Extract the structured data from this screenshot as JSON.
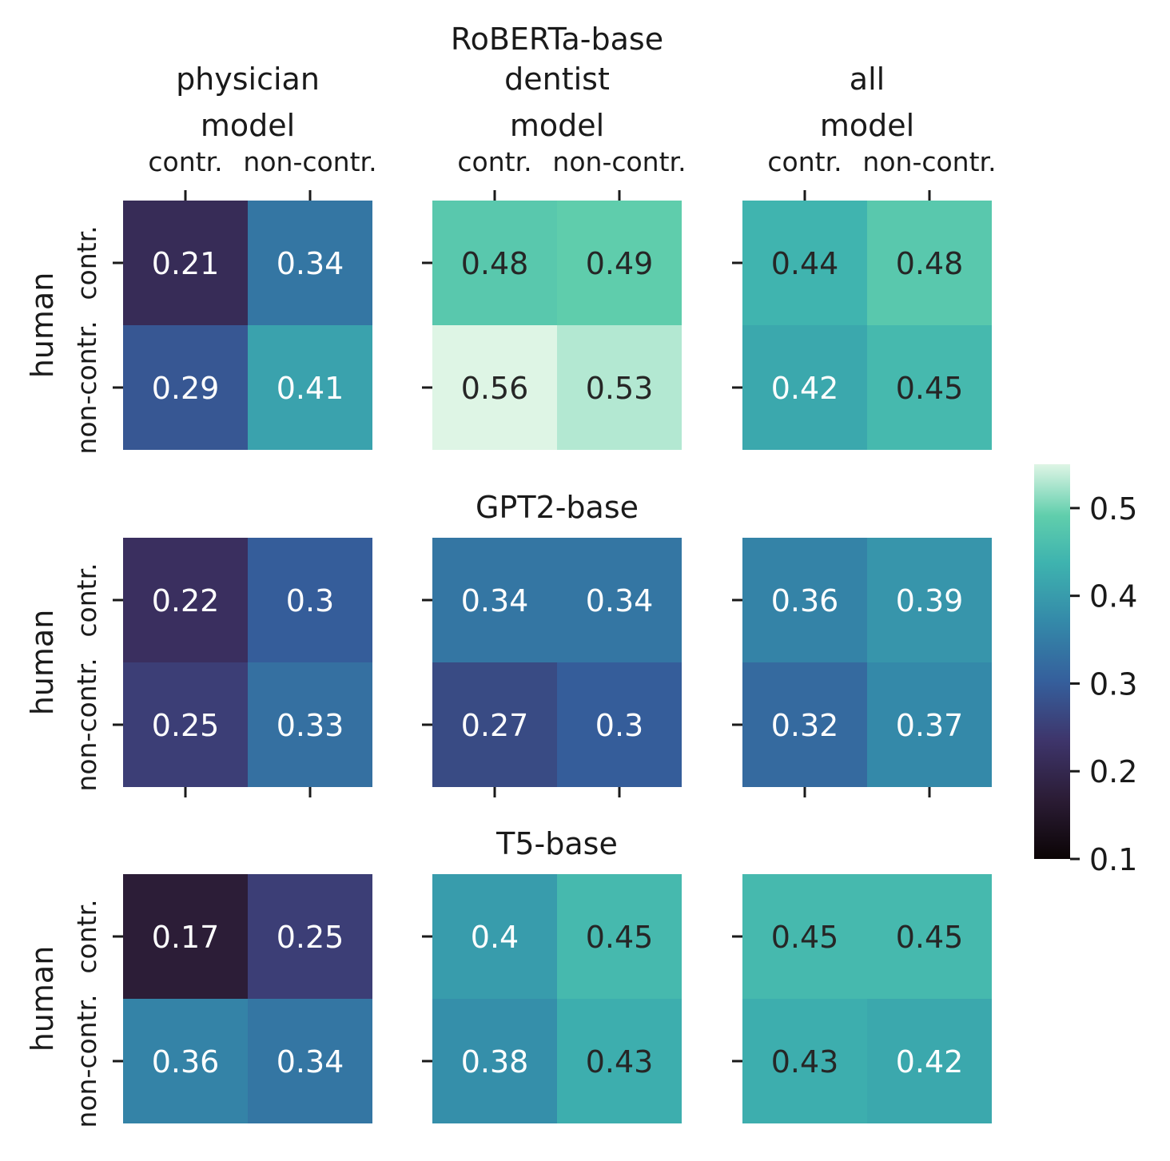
{
  "chart_data": {
    "type": "heatmap",
    "x_group_label": "model",
    "y_group_label": "human",
    "x_tick_labels": [
      "contr.",
      "non-contr."
    ],
    "y_tick_labels": [
      "contr.",
      "non-contr."
    ],
    "column_titles": [
      "physician",
      "dentist",
      "all"
    ],
    "colormap": "mako",
    "colorbar": {
      "vmin": 0.1,
      "vmax": 0.55,
      "ticks": [
        0.1,
        0.2,
        0.3,
        0.4,
        0.5
      ],
      "tick_labels": [
        "0.1",
        "0.2",
        "0.3",
        "0.4",
        "0.5"
      ]
    },
    "rows": [
      {
        "model_title": "RoBERTa-base",
        "panels": [
          {
            "column": "physician",
            "values": [
              [
                0.21,
                0.34
              ],
              [
                0.29,
                0.41
              ]
            ],
            "labels": [
              [
                "0.21",
                "0.34"
              ],
              [
                "0.29",
                "0.41"
              ]
            ]
          },
          {
            "column": "dentist",
            "values": [
              [
                0.48,
                0.49
              ],
              [
                0.56,
                0.53
              ]
            ],
            "labels": [
              [
                "0.48",
                "0.49"
              ],
              [
                "0.56",
                "0.53"
              ]
            ]
          },
          {
            "column": "all",
            "values": [
              [
                0.44,
                0.48
              ],
              [
                0.42,
                0.45
              ]
            ],
            "labels": [
              [
                "0.44",
                "0.48"
              ],
              [
                "0.42",
                "0.45"
              ]
            ]
          }
        ]
      },
      {
        "model_title": "GPT2-base",
        "panels": [
          {
            "column": "physician",
            "values": [
              [
                0.22,
                0.3
              ],
              [
                0.25,
                0.33
              ]
            ],
            "labels": [
              [
                "0.22",
                "0.3"
              ],
              [
                "0.25",
                "0.33"
              ]
            ]
          },
          {
            "column": "dentist",
            "values": [
              [
                0.34,
                0.34
              ],
              [
                0.27,
                0.3
              ]
            ],
            "labels": [
              [
                "0.34",
                "0.34"
              ],
              [
                "0.27",
                "0.3"
              ]
            ]
          },
          {
            "column": "all",
            "values": [
              [
                0.36,
                0.39
              ],
              [
                0.32,
                0.37
              ]
            ],
            "labels": [
              [
                "0.36",
                "0.39"
              ],
              [
                "0.32",
                "0.37"
              ]
            ]
          }
        ]
      },
      {
        "model_title": "T5-base",
        "panels": [
          {
            "column": "physician",
            "values": [
              [
                0.17,
                0.25
              ],
              [
                0.36,
                0.34
              ]
            ],
            "labels": [
              [
                "0.17",
                "0.25"
              ],
              [
                "0.36",
                "0.34"
              ]
            ]
          },
          {
            "column": "dentist",
            "values": [
              [
                0.4,
                0.45
              ],
              [
                0.38,
                0.43
              ]
            ],
            "labels": [
              [
                "0.4",
                "0.45"
              ],
              [
                "0.38",
                "0.43"
              ]
            ]
          },
          {
            "column": "all",
            "values": [
              [
                0.45,
                0.45
              ],
              [
                0.43,
                0.42
              ]
            ],
            "labels": [
              [
                "0.45",
                "0.45"
              ],
              [
                "0.43",
                "0.42"
              ]
            ]
          }
        ]
      }
    ]
  }
}
